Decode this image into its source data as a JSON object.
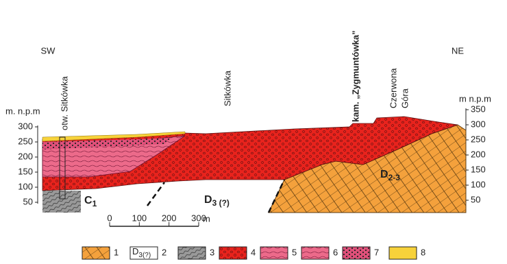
{
  "orientation": {
    "left": "SW",
    "right": "NE"
  },
  "left_axis": {
    "label": "m. n.p.m",
    "ticks": [
      300,
      250,
      200,
      150,
      100,
      50
    ]
  },
  "right_axis": {
    "label": "m n.p.m",
    "ticks": [
      350,
      300,
      250,
      200,
      150,
      100,
      50
    ]
  },
  "labels": {
    "borehole": "otw. Sitkówka",
    "village": "Sitkówka",
    "quarry": "kam. „Zygmuntówka”",
    "hill": [
      "Czerwona",
      "Góra"
    ]
  },
  "units": {
    "c1": {
      "base": "C",
      "sub": "1"
    },
    "d3": {
      "base": "D",
      "sub": "3 (?)"
    },
    "d23": {
      "base": "D",
      "sub": "2-3"
    }
  },
  "scale_bar": {
    "ticks": [
      0,
      100,
      200,
      300
    ],
    "unit": "m"
  },
  "legend": [
    {
      "number": 1
    },
    {
      "number": 2,
      "symbol": {
        "base": "D",
        "sub": "3(?)"
      }
    },
    {
      "number": 3
    },
    {
      "number": 4
    },
    {
      "number": 5
    },
    {
      "number": 6
    },
    {
      "number": 7
    },
    {
      "number": 8
    }
  ]
}
